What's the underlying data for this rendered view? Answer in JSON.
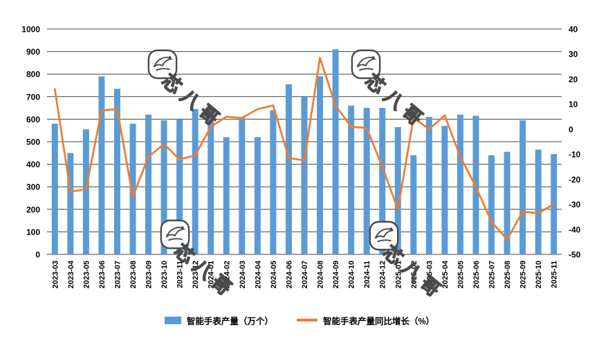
{
  "watermark": {
    "text": "芯八哥"
  },
  "colors": {
    "bar": "#5B9BD5",
    "line": "#ED7D31",
    "grid": "#404040",
    "text": "#000000",
    "background": "#FFFFFF"
  },
  "chart_data": {
    "type": "combo",
    "title": "",
    "grid": true,
    "legend_position": "bottom",
    "categories": [
      "2023-03",
      "2023-04",
      "2023-05",
      "2023-06",
      "2023-07",
      "2023-08",
      "2023-09",
      "2023-10",
      "2023-11",
      "2023-12",
      "2024-01",
      "2024-02",
      "2024-03",
      "2024-04",
      "2024-05",
      "2024-06",
      "2024-07",
      "2024-08",
      "2024-09",
      "2024-10",
      "2024-11",
      "2024-12",
      "2025-01",
      "2025-02",
      "2025-03",
      "2025-04",
      "2025-05",
      "2025-06",
      "2025-07",
      "2025-08",
      "2025-09",
      "2025-10",
      "2025-11"
    ],
    "series": [
      {
        "name": "智能手表产量（万个）",
        "type": "bar",
        "axis": "left",
        "color": "#5B9BD5",
        "values": [
          580,
          450,
          555,
          790,
          735,
          580,
          620,
          595,
          600,
          645,
          620,
          520,
          610,
          520,
          640,
          755,
          700,
          790,
          910,
          660,
          650,
          650,
          565,
          440,
          610,
          570,
          620,
          615,
          440,
          455,
          595,
          465,
          445
        ]
      },
      {
        "name": "智能手表产量同比增长（%）",
        "type": "line",
        "axis": "right",
        "color": "#ED7D31",
        "values": [
          16,
          -25,
          -24,
          7.5,
          8,
          -27,
          -11,
          -6,
          -12,
          -10.5,
          1,
          5,
          4.5,
          8,
          9.5,
          -11.5,
          -12.5,
          28.5,
          9.5,
          1,
          0.5,
          -15,
          -32,
          4.5,
          0,
          5.5,
          -11,
          -23,
          -37,
          -44,
          -33,
          -33.5,
          -30
        ]
      }
    ],
    "left_axis": {
      "min": 0,
      "max": 1000,
      "step": 100,
      "labels": [
        "0",
        "100",
        "200",
        "300",
        "400",
        "500",
        "600",
        "700",
        "800",
        "900",
        "1000"
      ]
    },
    "right_axis": {
      "min": -50,
      "max": 40,
      "step": 10,
      "labels": [
        "-50",
        "-40",
        "-30",
        "-20",
        "-10",
        "0",
        "10",
        "20",
        "30",
        "40"
      ]
    }
  }
}
